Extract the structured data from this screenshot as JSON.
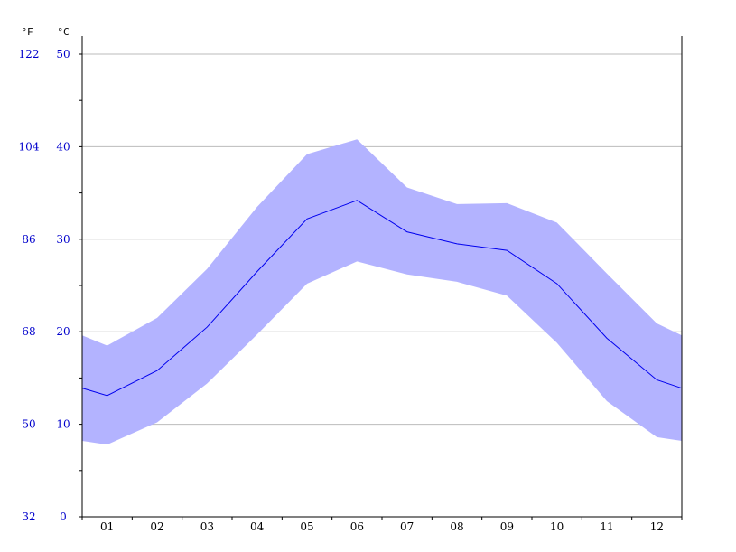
{
  "chart_data": {
    "type": "area",
    "x_axis": {
      "categories": [
        "01",
        "02",
        "03",
        "04",
        "05",
        "06",
        "07",
        "08",
        "09",
        "10",
        "11",
        "12"
      ]
    },
    "y_axis_celsius": {
      "unit": "°C",
      "ticks": [
        "0",
        "10",
        "20",
        "30",
        "40",
        "50"
      ],
      "ylim": [
        0,
        50
      ]
    },
    "y_axis_fahrenheit": {
      "unit": "°F",
      "ticks": [
        "32",
        "50",
        "68",
        "86",
        "104",
        "122"
      ]
    },
    "grid": true,
    "series": [
      {
        "role": "max",
        "values": [
          18.5,
          21.5,
          26.8,
          33.5,
          39.2,
          40.8,
          35.6,
          33.8,
          33.9,
          31.8,
          26.3,
          20.9
        ]
      },
      {
        "role": "mean",
        "values": [
          13.1,
          15.8,
          20.5,
          26.5,
          32.2,
          34.2,
          30.8,
          29.5,
          28.8,
          25.2,
          19.3,
          14.8
        ]
      },
      {
        "role": "min",
        "values": [
          7.8,
          10.2,
          14.4,
          19.7,
          25.2,
          27.6,
          26.2,
          25.4,
          23.9,
          18.8,
          12.5,
          8.6
        ]
      }
    ],
    "edge_values": {
      "left": {
        "max": 19.6,
        "mean": 13.9,
        "min": 8.2
      },
      "right": {
        "max": 19.6,
        "mean": 13.9,
        "min": 8.2
      }
    },
    "colors": {
      "band": "#b3b3ff",
      "mean_line": "#0000ee",
      "axis_labels_y": "#0000cc",
      "axis_labels_x": "#000000",
      "grid": "#bbbbbb",
      "axis": "#000000"
    }
  }
}
